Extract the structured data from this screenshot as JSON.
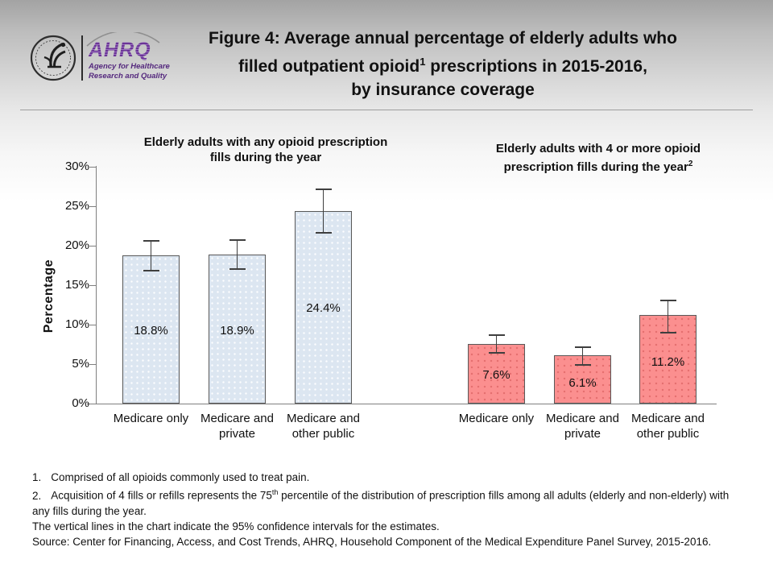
{
  "header": {
    "logo": {
      "acronym": "AHRQ",
      "tagline_line1": "Agency for Healthcare",
      "tagline_line2": "Research and Quality"
    },
    "title": {
      "line1": "Figure 4: Average annual percentage of elderly adults who",
      "line2_pre": "filled outpatient opioid",
      "line2_sup": "1",
      "line2_post": " prescriptions in 2015-2016,",
      "line3": "by insurance coverage"
    }
  },
  "chart_data": {
    "type": "bar",
    "title": "Figure 4: Average annual percentage of elderly adults who filled outpatient opioid¹ prescriptions in 2015-2016, by insurance coverage",
    "xlabel": "",
    "ylabel": "Percentage",
    "ylim": [
      0,
      30
    ],
    "yticks": [
      "0%",
      "5%",
      "10%",
      "15%",
      "20%",
      "25%",
      "30%"
    ],
    "grid": false,
    "legend": "none",
    "error_bar_note": "95% confidence intervals",
    "groups": [
      {
        "title": {
          "line1": "Elderly adults with any opioid prescription",
          "line2": "fills during the year",
          "sup": ""
        },
        "fill": "#dce6f1",
        "border": "#595959",
        "categories": [
          "Medicare only",
          "Medicare and private",
          "Medicare and other public"
        ],
        "values": [
          18.8,
          18.9,
          24.4
        ],
        "labels": [
          "18.8%",
          "18.9%",
          "24.4%"
        ],
        "ci_low": [
          16.8,
          17.0,
          21.6
        ],
        "ci_high": [
          20.7,
          20.8,
          27.2
        ]
      },
      {
        "title": {
          "line1": "Elderly adults with 4 or more opioid",
          "line2": "prescription fills during the year",
          "sup": "2"
        },
        "fill": "#fb8f8f",
        "border": "#595959",
        "categories": [
          "Medicare only",
          "Medicare and private",
          "Medicare and other public"
        ],
        "values": [
          7.6,
          6.1,
          11.2
        ],
        "labels": [
          "7.6%",
          "6.1%",
          "11.2%"
        ],
        "ci_low": [
          6.4,
          4.9,
          9.0
        ],
        "ci_high": [
          8.8,
          7.2,
          13.2
        ]
      }
    ]
  },
  "footnotes": {
    "fn1": {
      "num": "1.",
      "text": "Comprised of all opioids commonly used to treat pain."
    },
    "fn2": {
      "num": "2.",
      "text_pre": "Acquisition of 4 fills or refills represents the 75",
      "sup": "th",
      "text_post": " percentile of the distribution of prescription fills among all adults (elderly and non-elderly) with any fills during the year."
    },
    "ci_note": "The vertical lines in the chart indicate the 95% confidence intervals for the estimates.",
    "source": "Source: Center for Financing, Access, and Cost Trends, AHRQ, Household Component of the Medical Expenditure Panel Survey, 2015-2016."
  }
}
